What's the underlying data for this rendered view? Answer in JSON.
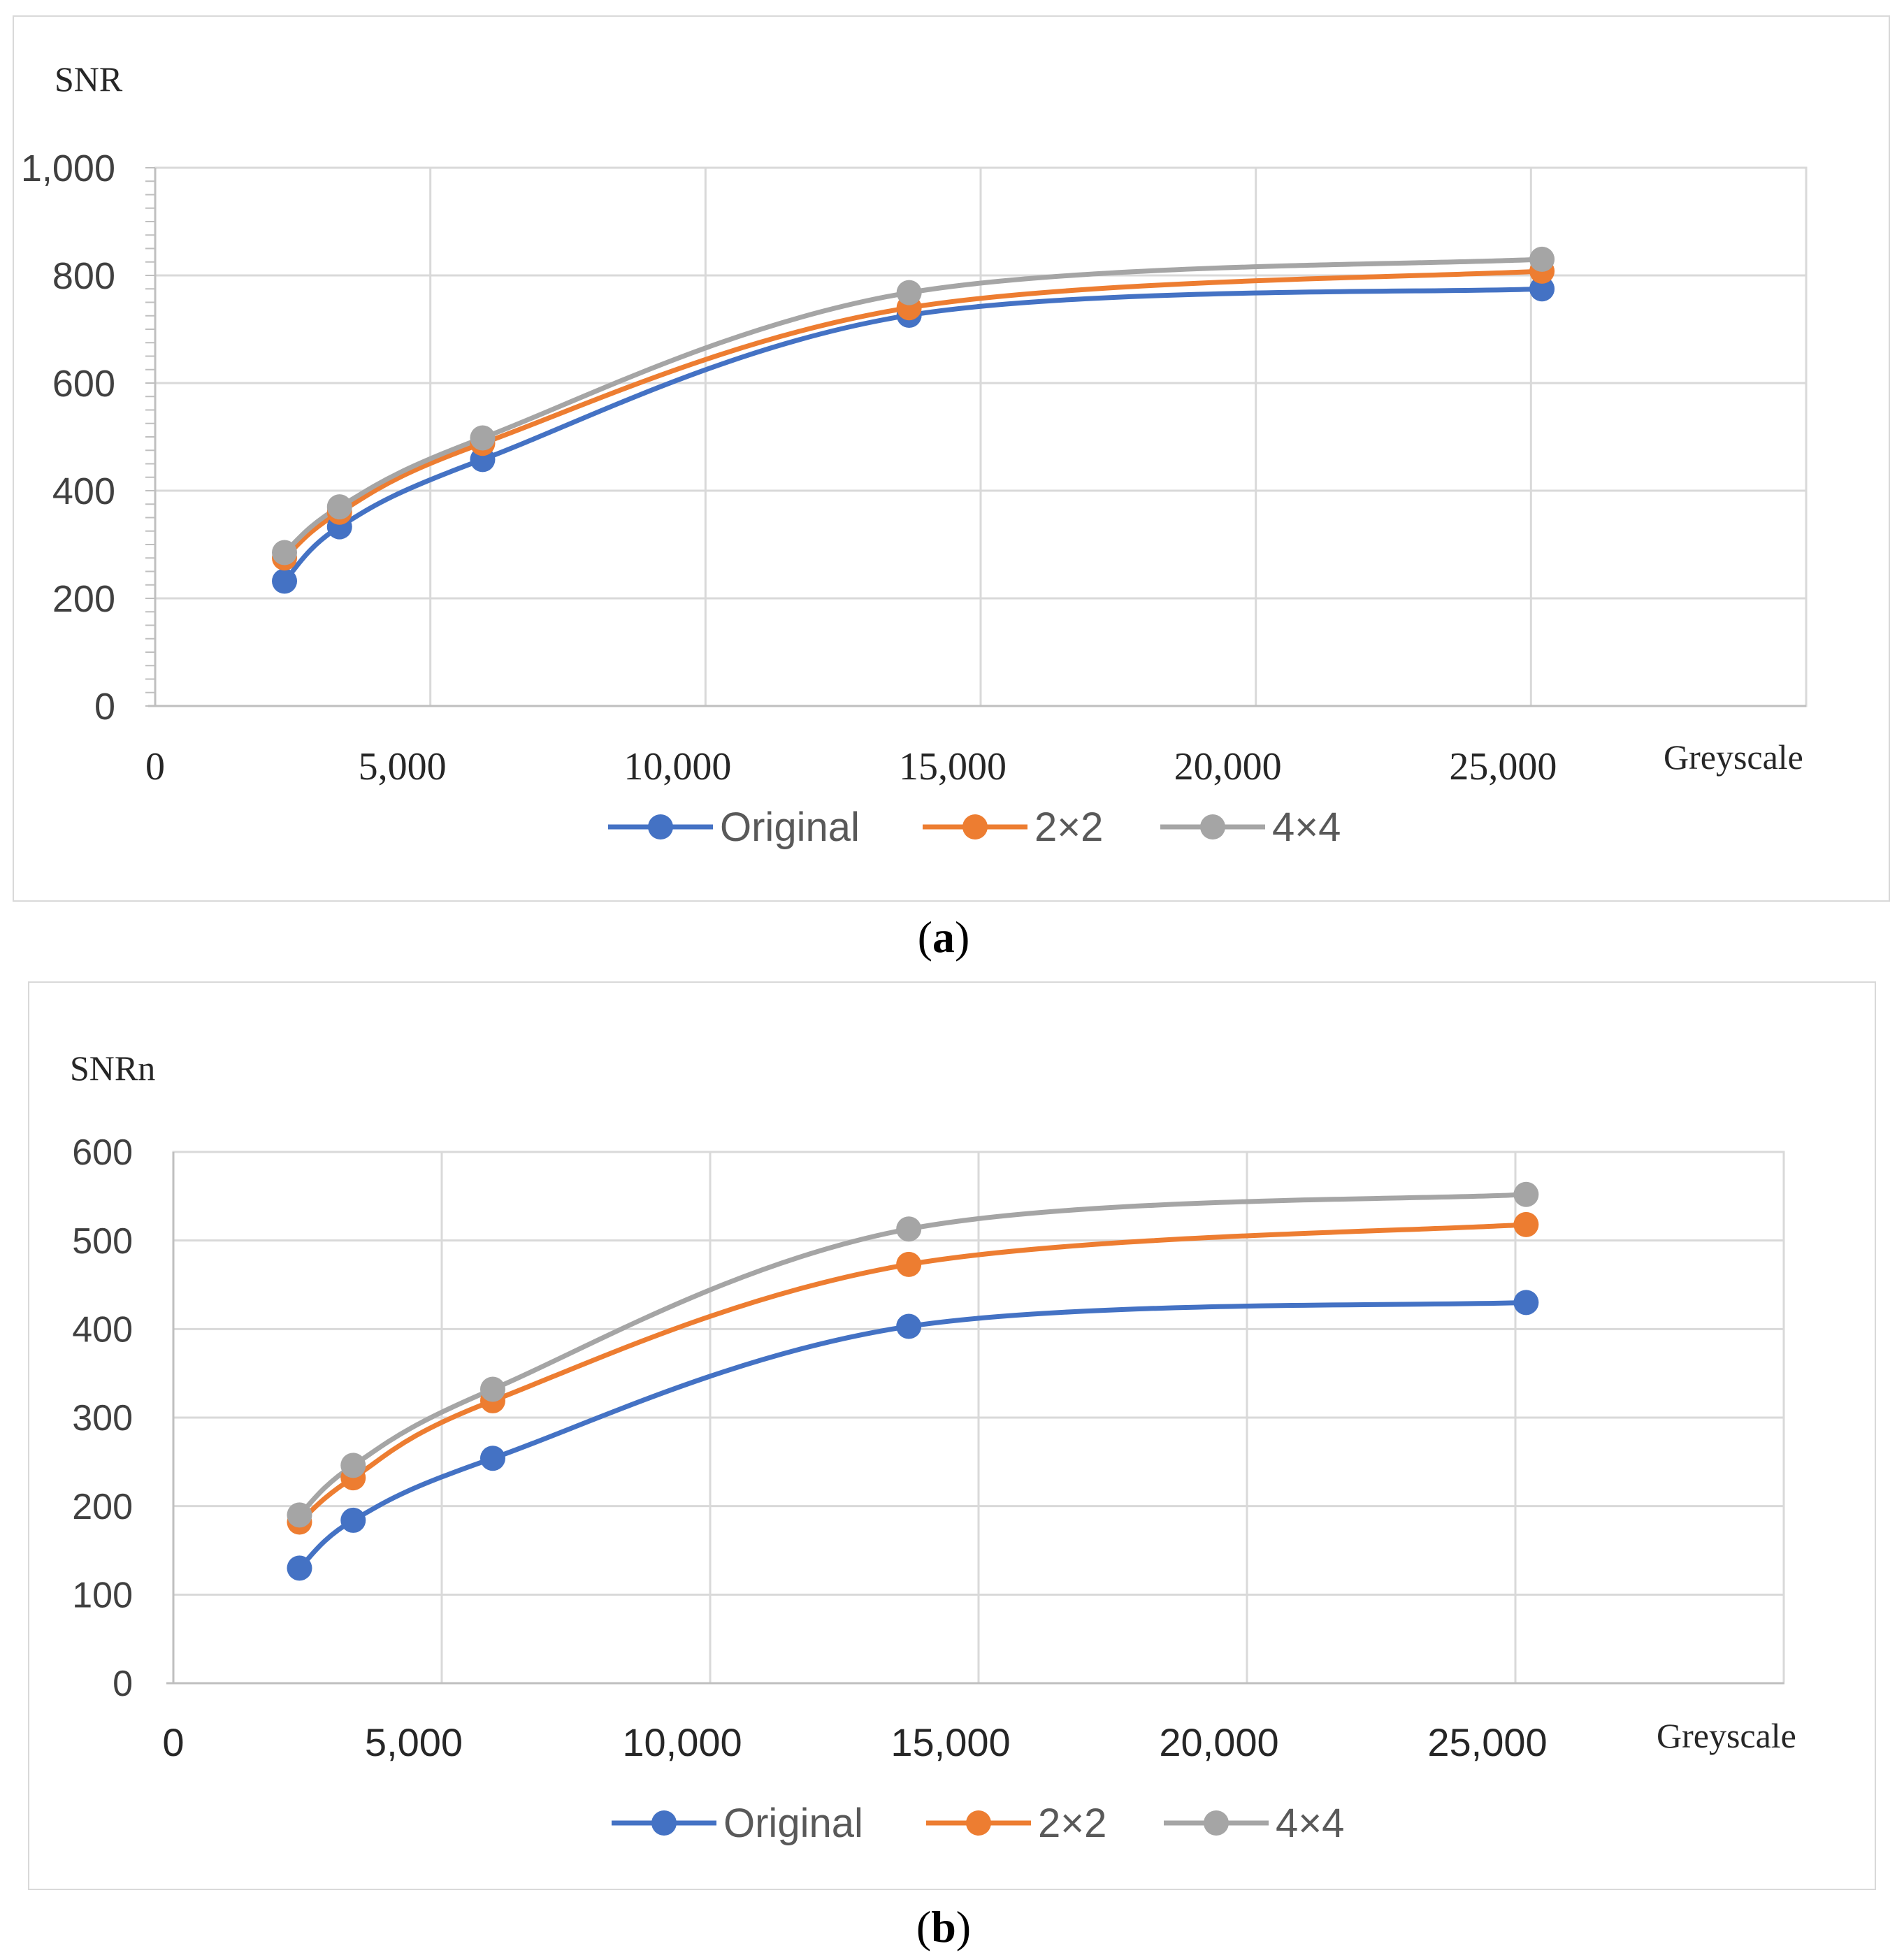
{
  "chart_data": [
    {
      "type": "line",
      "panel_label": "a",
      "ylabel": "SNR",
      "xlabel": "Greyscale",
      "xlim": [
        0,
        30000
      ],
      "ylim": [
        0,
        1000
      ],
      "x_ticks": [
        "0",
        "5,000",
        "10,000",
        "15,000",
        "20,000",
        "25,000"
      ],
      "y_ticks": [
        "0",
        "200",
        "400",
        "600",
        "800",
        "1,000"
      ],
      "x": [
        2350,
        3350,
        5950,
        13700,
        25200
      ],
      "series": [
        {
          "name": "Original",
          "color": "#4472c4",
          "values": [
            232,
            333,
            458,
            726,
            775
          ]
        },
        {
          "name": "2×2",
          "color": "#ed7d31",
          "values": [
            275,
            360,
            488,
            740,
            808
          ]
        },
        {
          "name": "4×4",
          "color": "#a5a5a5",
          "values": [
            285,
            370,
            498,
            768,
            830
          ]
        }
      ],
      "legend": "bottom",
      "grid": true
    },
    {
      "type": "line",
      "panel_label": "b",
      "ylabel": "SNRn",
      "xlabel": "Greyscale",
      "xlim": [
        0,
        30000
      ],
      "ylim": [
        0,
        600
      ],
      "x_ticks": [
        "0",
        "5,000",
        "10,000",
        "15,000",
        "20,000",
        "25,000"
      ],
      "y_ticks": [
        "0",
        "100",
        "200",
        "300",
        "400",
        "500",
        "600"
      ],
      "x": [
        2350,
        3350,
        5950,
        13700,
        25200
      ],
      "series": [
        {
          "name": "Original",
          "color": "#4472c4",
          "values": [
            130,
            184,
            254,
            403,
            430
          ]
        },
        {
          "name": "2×2",
          "color": "#ed7d31",
          "values": [
            182,
            232,
            319,
            473,
            518
          ]
        },
        {
          "name": "4×4",
          "color": "#a5a5a5",
          "values": [
            190,
            246,
            332,
            513,
            552
          ]
        }
      ],
      "legend": "bottom",
      "grid": true
    }
  ]
}
